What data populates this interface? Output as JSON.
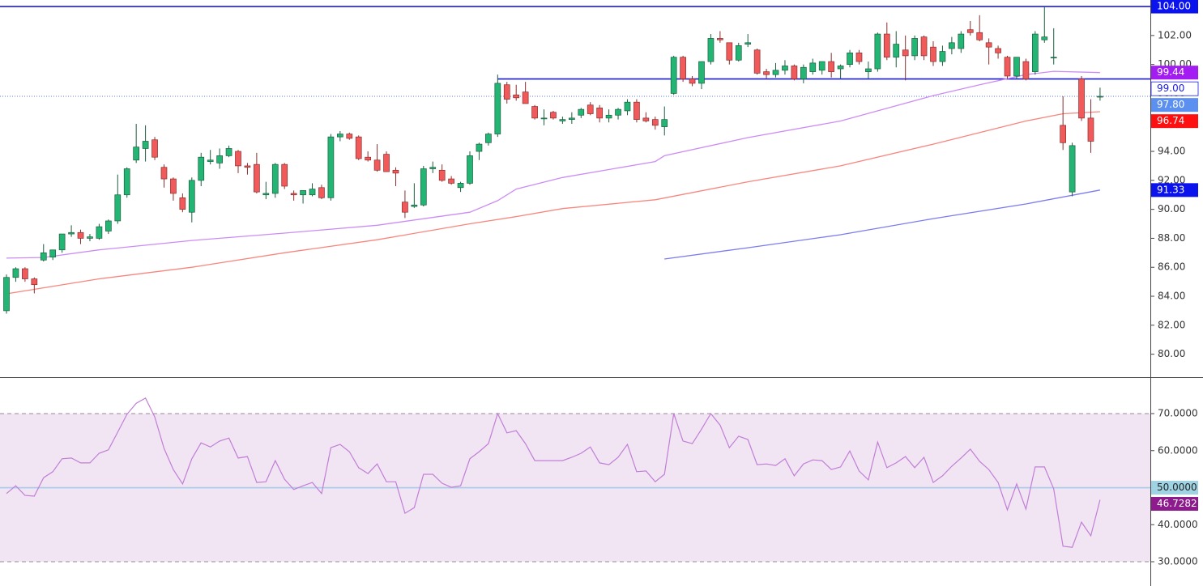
{
  "chart_data": [
    {
      "type": "candlestick",
      "open": [
        83,
        85.3,
        85.9,
        85.2,
        86.5,
        86.7,
        87.2,
        88.3,
        88.4,
        88.0,
        88.0,
        88.5,
        89.2,
        91,
        93.4,
        94.2,
        94.8,
        92.9,
        92.1,
        90.8,
        89.8,
        92.0,
        93.3,
        93.2,
        93.7,
        94.0,
        93.0,
        93.1,
        91.0,
        91.1,
        93.1,
        91.1,
        91.0,
        91.0,
        91.5,
        90.8,
        95.0,
        95.2,
        95.0,
        93.6,
        93.4,
        93.8,
        92.7,
        90.5,
        90.2,
        90.3,
        92.8,
        92.7,
        92.1,
        91.5,
        91.8,
        94.0,
        94.6,
        95.2,
        98.6,
        97.9,
        98.1,
        97.1,
        96.3,
        96.7,
        96.1,
        96.2,
        96.5,
        97.2,
        97.0,
        96.3,
        96.5,
        96.8,
        97.4,
        96.3,
        96.2,
        95.7,
        98.0,
        100.5,
        99.0,
        98.7,
        100.2,
        101.8,
        101.5,
        100.3,
        101.4,
        101.0,
        99.5,
        99.3,
        99.6,
        99.9,
        99.0,
        99.5,
        99.6,
        100.2,
        99.7,
        100.0,
        100.8,
        99.5,
        99.7,
        102.1,
        100.5,
        101.0,
        100.6,
        101.9,
        101.2,
        100.2,
        101.1,
        101.1,
        102.4,
        102.2,
        101.5,
        101.1,
        100.5,
        99.2,
        100.2,
        99.5,
        101.7,
        100.5,
        95.8,
        91.2,
        99.0,
        96.3,
        97.8
      ],
      "high": [
        85.5,
        86,
        86,
        85.3,
        87.6,
        87.2,
        88.3,
        88.9,
        88.6,
        88.3,
        89,
        89.3,
        92.4,
        92.9,
        95.9,
        95.8,
        95.0,
        93.1,
        92.2,
        91.1,
        92.2,
        93.9,
        94.1,
        94.2,
        94.4,
        94.1,
        93.2,
        93.9,
        91.9,
        93.2,
        93.2,
        91.3,
        91.2,
        91.8,
        91.7,
        95.2,
        95.4,
        95.3,
        95.1,
        94.0,
        94.5,
        94.0,
        92.9,
        91.3,
        91.8,
        93.0,
        93.3,
        93.1,
        92.3,
        91.9,
        94.0,
        94.6,
        95.3,
        99.3,
        98.8,
        98.6,
        98.8,
        97.2,
        96.9,
        96.8,
        96.4,
        96.7,
        97.0,
        97.4,
        97.2,
        96.9,
        97.0,
        97.6,
        97.6,
        96.7,
        96.4,
        97.1,
        100.6,
        100.6,
        99.2,
        100.2,
        102.1,
        102.3,
        101.5,
        101.5,
        102.1,
        101.1,
        99.7,
        100.1,
        100.3,
        100.0,
        100.0,
        100.4,
        100.2,
        100.8,
        100.0,
        101.0,
        101.0,
        100.2,
        102.2,
        102.9,
        102.3,
        102.0,
        102.0,
        102.0,
        101.6,
        101.3,
        101.9,
        102.3,
        103.0,
        103.4,
        101.8,
        101.3,
        100.6,
        100.5,
        100.4,
        102.3,
        104.0,
        102.5,
        97.8,
        94.6,
        99.2,
        97.6,
        98.4
      ],
      "low": [
        82.8,
        85,
        85,
        84.2,
        86.4,
        86.5,
        87,
        88.1,
        87.6,
        87.8,
        87.9,
        88.3,
        89,
        90.8,
        93.2,
        93.3,
        93.4,
        91.5,
        90.6,
        89.8,
        89.1,
        91.6,
        93.1,
        92.8,
        93.6,
        92.5,
        92.4,
        91.1,
        90.7,
        90.8,
        91.4,
        90.6,
        90.4,
        90.9,
        90.7,
        90.6,
        94.7,
        94.8,
        93.4,
        93.3,
        92.6,
        92.6,
        91.6,
        89.4,
        90.1,
        90.2,
        92.5,
        91.9,
        91.7,
        91.2,
        91.7,
        93.4,
        94.4,
        95.0,
        97.3,
        97.5,
        97.3,
        96.2,
        95.8,
        96.2,
        95.9,
        95.9,
        96.3,
        96.5,
        96.0,
        96.0,
        96.2,
        96.5,
        96.0,
        96.0,
        95.5,
        95.1,
        97.9,
        98.8,
        98.5,
        98.3,
        100.0,
        101.5,
        100.0,
        100.2,
        101.2,
        99.3,
        99.0,
        99.1,
        99.3,
        98.9,
        98.7,
        99.3,
        99.3,
        99.1,
        99.0,
        99.8,
        100.0,
        99.0,
        99.5,
        100.3,
        99.8,
        98.9,
        100.3,
        100.3,
        99.9,
        99.9,
        100.7,
        100.8,
        102.0,
        101.6,
        100.0,
        100.4,
        99.0,
        99.0,
        98.9,
        99.3,
        101.5,
        100.0,
        94.1,
        90.9,
        96.1,
        93.9,
        97.5
      ],
      "close": [
        85.3,
        85.9,
        85.2,
        84.8,
        87.0,
        87.2,
        88.3,
        88.4,
        88.0,
        88.1,
        88.8,
        89.2,
        91.0,
        92.8,
        94.3,
        94.7,
        93.6,
        92.1,
        91.1,
        90.0,
        92.0,
        93.6,
        93.4,
        93.7,
        94.2,
        93.0,
        92.9,
        91.2,
        91.1,
        93.1,
        91.6,
        91.0,
        91.3,
        91.4,
        90.8,
        95.0,
        95.2,
        94.9,
        93.5,
        93.4,
        92.7,
        92.6,
        92.5,
        89.8,
        90.3,
        92.8,
        92.9,
        92.0,
        91.8,
        91.8,
        93.7,
        94.5,
        95.2,
        98.7,
        97.6,
        97.7,
        97.3,
        96.3,
        96.3,
        96.3,
        96.2,
        96.3,
        96.9,
        96.6,
        96.3,
        96.5,
        96.9,
        97.4,
        96.2,
        96.1,
        95.8,
        96.2,
        100.5,
        99.0,
        98.7,
        100.2,
        101.8,
        101.7,
        100.3,
        101.3,
        101.5,
        99.4,
        99.3,
        99.6,
        99.9,
        99.0,
        99.8,
        100.1,
        100.2,
        99.5,
        99.9,
        100.8,
        100.2,
        99.7,
        102.1,
        100.5,
        101.4,
        100.6,
        101.8,
        100.6,
        100.2,
        100.9,
        101.5,
        102.1,
        102.2,
        101.7,
        101.2,
        100.8,
        99.2,
        100.5,
        99.0,
        102.1,
        101.9,
        100.5,
        94.6,
        94.4,
        96.3,
        94.7,
        97.8
      ],
      "up_color": "#22b573",
      "down_color": "#f05a5a",
      "ylim": [
        78.47,
        104.45
      ],
      "yticks": [
        {
          "value": 80,
          "label": "80.00"
        },
        {
          "value": 82,
          "label": "82.00"
        },
        {
          "value": 84,
          "label": "84.00"
        },
        {
          "value": 86,
          "label": "86.00"
        },
        {
          "value": 88,
          "label": "88.00"
        },
        {
          "value": 90,
          "label": "90.00"
        },
        {
          "value": 92,
          "label": "92.00"
        },
        {
          "value": 94,
          "label": "94.00"
        },
        {
          "value": 96,
          "label": "96.00"
        },
        {
          "value": 98,
          "label": "98.00"
        },
        {
          "value": 100,
          "label": "100.00"
        },
        {
          "value": 102,
          "label": "102.00"
        }
      ],
      "series": [
        {
          "x": [
            0,
            4,
            10,
            20,
            30,
            40,
            50,
            53,
            55,
            60,
            70,
            71,
            80,
            90,
            100,
            105,
            110,
            113,
            118
          ],
          "values": [
            86.63,
            86.68,
            87.2,
            87.85,
            88.36,
            88.9,
            89.8,
            90.6,
            91.4,
            92.2,
            93.3,
            93.7,
            94.95,
            96.1,
            97.85,
            98.6,
            99.3,
            99.53,
            99.44
          ],
          "color": "#cc8cf5"
        },
        {
          "x": [
            0,
            10,
            20,
            30,
            40,
            50,
            55,
            60,
            70,
            80,
            90,
            100,
            110,
            114,
            118
          ],
          "values": [
            84.17,
            85.2,
            86.0,
            87.0,
            87.9,
            89.0,
            89.5,
            90.05,
            90.66,
            91.9,
            93.0,
            94.5,
            96.1,
            96.6,
            96.74
          ],
          "color": "#f7867e"
        },
        {
          "x": [
            71,
            80,
            90,
            100,
            110,
            118
          ],
          "values": [
            86.57,
            87.35,
            88.25,
            89.36,
            90.37,
            91.33
          ],
          "color": "#7b7cf0"
        }
      ],
      "levels": [
        {
          "value": 104,
          "label": "104.00",
          "bg": "#0a12ee",
          "fg": "#ffffff",
          "line": "solid",
          "color": "#1a1ae6"
        },
        {
          "value": 99.44,
          "label": "99.44",
          "bg": "#a31cf2",
          "fg": "#ffffff"
        },
        {
          "value": 99,
          "label": "99.00",
          "bg": "#ffffff",
          "fg": "#1a1ae6",
          "line": "solid",
          "color": "#1a1ae6",
          "start": 53
        },
        {
          "value": 97.8,
          "label": "97.80",
          "bg": "#5b8ff0",
          "fg": "#ffffff",
          "line": "dotted",
          "color": "#5b7fe0"
        },
        {
          "value": 96.74,
          "label": "96.74",
          "bg": "#ff1010",
          "fg": "#ffffff"
        },
        {
          "value": 91.33,
          "label": "91.33",
          "bg": "#0a12ee",
          "fg": "#ffffff"
        }
      ]
    },
    {
      "type": "line",
      "series": [
        {
          "values": [
            48.4,
            50.5,
            47.9,
            47.7,
            52.7,
            54.3,
            57.8,
            58,
            56.7,
            56.7,
            59.3,
            60.2,
            65,
            69.8,
            72.8,
            74.2,
            69.1,
            60.6,
            54.9,
            51,
            57.8,
            62.1,
            61,
            62.6,
            63.4,
            58,
            58.4,
            51.4,
            51.6,
            57.3,
            52.3,
            49.5,
            50.5,
            51.4,
            48.4,
            60.8,
            61.7,
            59.7,
            55.4,
            53.8,
            56.4,
            51.6,
            51.6,
            43.1,
            44.6,
            53.6,
            53.6,
            51.2,
            50.1,
            50.5,
            57.8,
            59.7,
            61.9,
            70,
            64.8,
            65.4,
            61.9,
            57.3,
            57.3,
            57.3,
            57.3,
            58.2,
            59.3,
            61,
            56.7,
            56.2,
            58.2,
            61.7,
            54.3,
            54.5,
            51.6,
            53.6,
            70,
            62.6,
            61.9,
            65.8,
            70,
            66.9,
            60.8,
            63.9,
            63,
            56.2,
            56.4,
            56,
            57.8,
            53.2,
            56.4,
            57.5,
            57.3,
            54.9,
            55.6,
            59.9,
            54.5,
            52.1,
            62.3,
            55.4,
            56.7,
            58.4,
            55.4,
            58.2,
            51.4,
            53.2,
            55.8,
            58,
            60.4,
            57.1,
            54.9,
            51.4,
            44,
            51,
            44.2,
            55.6,
            55.6,
            49.7,
            34.2,
            33.9,
            40.7,
            37,
            46.7282
          ],
          "color": "#c17fd6"
        }
      ],
      "ylim": [
        24.32,
        79.62
      ],
      "yticks": [
        {
          "value": 30,
          "label": "30.0000"
        },
        {
          "value": 40,
          "label": "40.0000"
        },
        {
          "value": 60,
          "label": "60.0000"
        },
        {
          "value": 70,
          "label": "70.0000"
        }
      ],
      "band": [
        30,
        70
      ],
      "band_color": "#f1e4f3",
      "levels": [
        {
          "value": 50,
          "label": "50.0000",
          "bg": "#9fd3e3",
          "fg": "#222222",
          "line": "solid",
          "color": "#a9cbe8"
        },
        {
          "value": 46.7282,
          "label": "46.7282",
          "bg": "#8e1b8e",
          "fg": "#ffffff"
        }
      ]
    }
  ]
}
